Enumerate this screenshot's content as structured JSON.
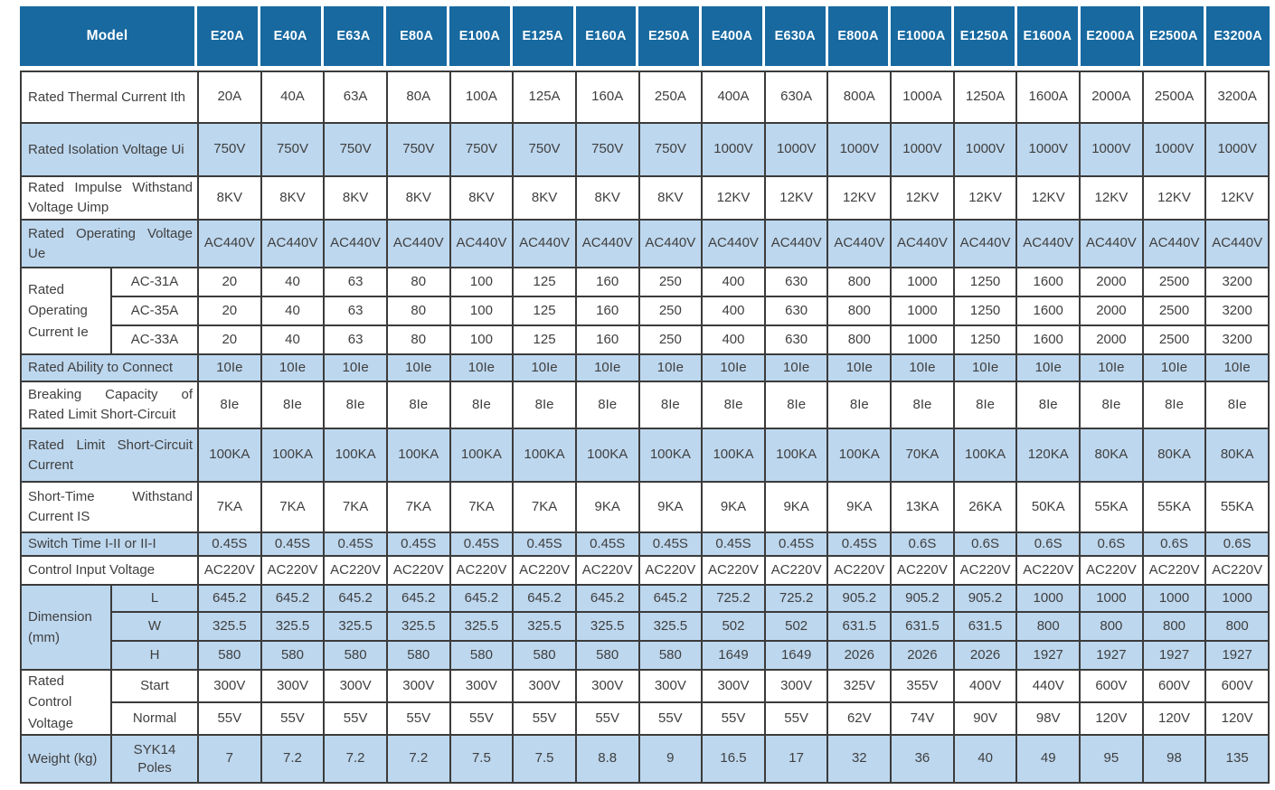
{
  "title": "Product specification table",
  "colors": {
    "header_bg": "#1769A0",
    "row_shade": "#BDD7EE",
    "border": "#3B3B3B",
    "text": "#3F3F3F",
    "header_text": "#FFFFFF"
  },
  "table": {
    "model_header": "Model",
    "columns": [
      "E20A",
      "E40A",
      "E63A",
      "E80A",
      "E100A",
      "E125A",
      "E160A",
      "E250A",
      "E400A",
      "E630A",
      "E800A",
      "E1000A",
      "E1250A",
      "E1600A",
      "E2000A",
      "E2500A",
      "E3200A"
    ],
    "specs": [
      {
        "label": "Rated Thermal Current Ith",
        "shade": false,
        "values": [
          "20A",
          "40A",
          "63A",
          "80A",
          "100A",
          "125A",
          "160A",
          "250A",
          "400A",
          "630A",
          "800A",
          "1000A",
          "1250A",
          "1600A",
          "2000A",
          "2500A",
          "3200A"
        ]
      },
      {
        "label": "Rated Isolation Voltage Ui",
        "shade": true,
        "values": [
          "750V",
          "750V",
          "750V",
          "750V",
          "750V",
          "750V",
          "750V",
          "750V",
          "1000V",
          "1000V",
          "1000V",
          "1000V",
          "1000V",
          "1000V",
          "1000V",
          "1000V",
          "1000V"
        ]
      },
      {
        "label": "Rated Impulse Withstand Voltage Uimp",
        "shade": false,
        "values": [
          "8KV",
          "8KV",
          "8KV",
          "8KV",
          "8KV",
          "8KV",
          "8KV",
          "8KV",
          "12KV",
          "12KV",
          "12KV",
          "12KV",
          "12KV",
          "12KV",
          "12KV",
          "12KV",
          "12KV"
        ]
      },
      {
        "label": "Rated Operating Voltage Ue",
        "shade": true,
        "values": [
          "AC440V",
          "AC440V",
          "AC440V",
          "AC440V",
          "AC440V",
          "AC440V",
          "AC440V",
          "AC440V",
          "AC440V",
          "AC440V",
          "AC440V",
          "AC440V",
          "AC440V",
          "AC440V",
          "AC440V",
          "AC440V",
          "AC440V"
        ]
      },
      {
        "label": "Rated Operating Current Ie",
        "shade": false,
        "subrows": [
          {
            "label": "AC-31A",
            "values": [
              "20",
              "40",
              "63",
              "80",
              "100",
              "125",
              "160",
              "250",
              "400",
              "630",
              "800",
              "1000",
              "1250",
              "1600",
              "2000",
              "2500",
              "3200"
            ]
          },
          {
            "label": "AC-35A",
            "values": [
              "20",
              "40",
              "63",
              "80",
              "100",
              "125",
              "160",
              "250",
              "400",
              "630",
              "800",
              "1000",
              "1250",
              "1600",
              "2000",
              "2500",
              "3200"
            ]
          },
          {
            "label": "AC-33A",
            "values": [
              "20",
              "40",
              "63",
              "80",
              "100",
              "125",
              "160",
              "250",
              "400",
              "630",
              "800",
              "1000",
              "1250",
              "1600",
              "2000",
              "2500",
              "3200"
            ]
          }
        ]
      },
      {
        "label": "Rated Ability to Connect",
        "shade": true,
        "values": [
          "10Ie",
          "10Ie",
          "10Ie",
          "10Ie",
          "10Ie",
          "10Ie",
          "10Ie",
          "10Ie",
          "10Ie",
          "10Ie",
          "10Ie",
          "10Ie",
          "10Ie",
          "10Ie",
          "10Ie",
          "10Ie",
          "10Ie"
        ]
      },
      {
        "label": "Breaking Capacity of Rated Limit Short-Circuit",
        "shade": false,
        "values": [
          "8Ie",
          "8Ie",
          "8Ie",
          "8Ie",
          "8Ie",
          "8Ie",
          "8Ie",
          "8Ie",
          "8Ie",
          "8Ie",
          "8Ie",
          "8Ie",
          "8Ie",
          "8Ie",
          "8Ie",
          "8Ie",
          "8Ie"
        ]
      },
      {
        "label": "Rated Limit Short-Circuit Current",
        "shade": true,
        "values": [
          "100KA",
          "100KA",
          "100KA",
          "100KA",
          "100KA",
          "100KA",
          "100KA",
          "100KA",
          "100KA",
          "100KA",
          "100KA",
          "70KA",
          "100KA",
          "120KA",
          "80KA",
          "80KA",
          "80KA"
        ]
      },
      {
        "label": "Short-Time Withstand Current IS",
        "shade": false,
        "values": [
          "7KA",
          "7KA",
          "7KA",
          "7KA",
          "7KA",
          "7KA",
          "9KA",
          "9KA",
          "9KA",
          "9KA",
          "9KA",
          "13KA",
          "26KA",
          "50KA",
          "55KA",
          "55KA",
          "55KA"
        ]
      },
      {
        "label": "Switch Time I-II or II-I",
        "shade": true,
        "values": [
          "0.45S",
          "0.45S",
          "0.45S",
          "0.45S",
          "0.45S",
          "0.45S",
          "0.45S",
          "0.45S",
          "0.45S",
          "0.45S",
          "0.45S",
          "0.6S",
          "0.6S",
          "0.6S",
          "0.6S",
          "0.6S",
          "0.6S"
        ]
      },
      {
        "label": "Control Input Voltage",
        "shade": false,
        "values": [
          "AC220V",
          "AC220V",
          "AC220V",
          "AC220V",
          "AC220V",
          "AC220V",
          "AC220V",
          "AC220V",
          "AC220V",
          "AC220V",
          "AC220V",
          "AC220V",
          "AC220V",
          "AC220V",
          "AC220V",
          "AC220V",
          "AC220V"
        ]
      },
      {
        "label": "Dimension (mm)",
        "shade": true,
        "subrows": [
          {
            "label": "L",
            "values": [
              "645.2",
              "645.2",
              "645.2",
              "645.2",
              "645.2",
              "645.2",
              "645.2",
              "645.2",
              "725.2",
              "725.2",
              "905.2",
              "905.2",
              "905.2",
              "1000",
              "1000",
              "1000",
              "1000"
            ]
          },
          {
            "label": "W",
            "values": [
              "325.5",
              "325.5",
              "325.5",
              "325.5",
              "325.5",
              "325.5",
              "325.5",
              "325.5",
              "502",
              "502",
              "631.5",
              "631.5",
              "631.5",
              "800",
              "800",
              "800",
              "800"
            ]
          },
          {
            "label": "H",
            "values": [
              "580",
              "580",
              "580",
              "580",
              "580",
              "580",
              "580",
              "580",
              "1649",
              "1649",
              "2026",
              "2026",
              "2026",
              "1927",
              "1927",
              "1927",
              "1927"
            ]
          }
        ]
      },
      {
        "label": "Rated Control Voltage",
        "shade": false,
        "subrows": [
          {
            "label": "Start",
            "values": [
              "300V",
              "300V",
              "300V",
              "300V",
              "300V",
              "300V",
              "300V",
              "300V",
              "300V",
              "300V",
              "325V",
              "355V",
              "400V",
              "440V",
              "600V",
              "600V",
              "600V"
            ]
          },
          {
            "label": "Normal",
            "values": [
              "55V",
              "55V",
              "55V",
              "55V",
              "55V",
              "55V",
              "55V",
              "55V",
              "55V",
              "55V",
              "62V",
              "74V",
              "90V",
              "98V",
              "120V",
              "120V",
              "120V"
            ]
          }
        ]
      },
      {
        "label": "Weight (kg)",
        "shade": true,
        "subrows": [
          {
            "label": "SYK14 Poles",
            "values": [
              "7",
              "7.2",
              "7.2",
              "7.2",
              "7.5",
              "7.5",
              "8.8",
              "9",
              "16.5",
              "17",
              "32",
              "36",
              "40",
              "49",
              "95",
              "98",
              "135"
            ]
          }
        ]
      }
    ]
  }
}
